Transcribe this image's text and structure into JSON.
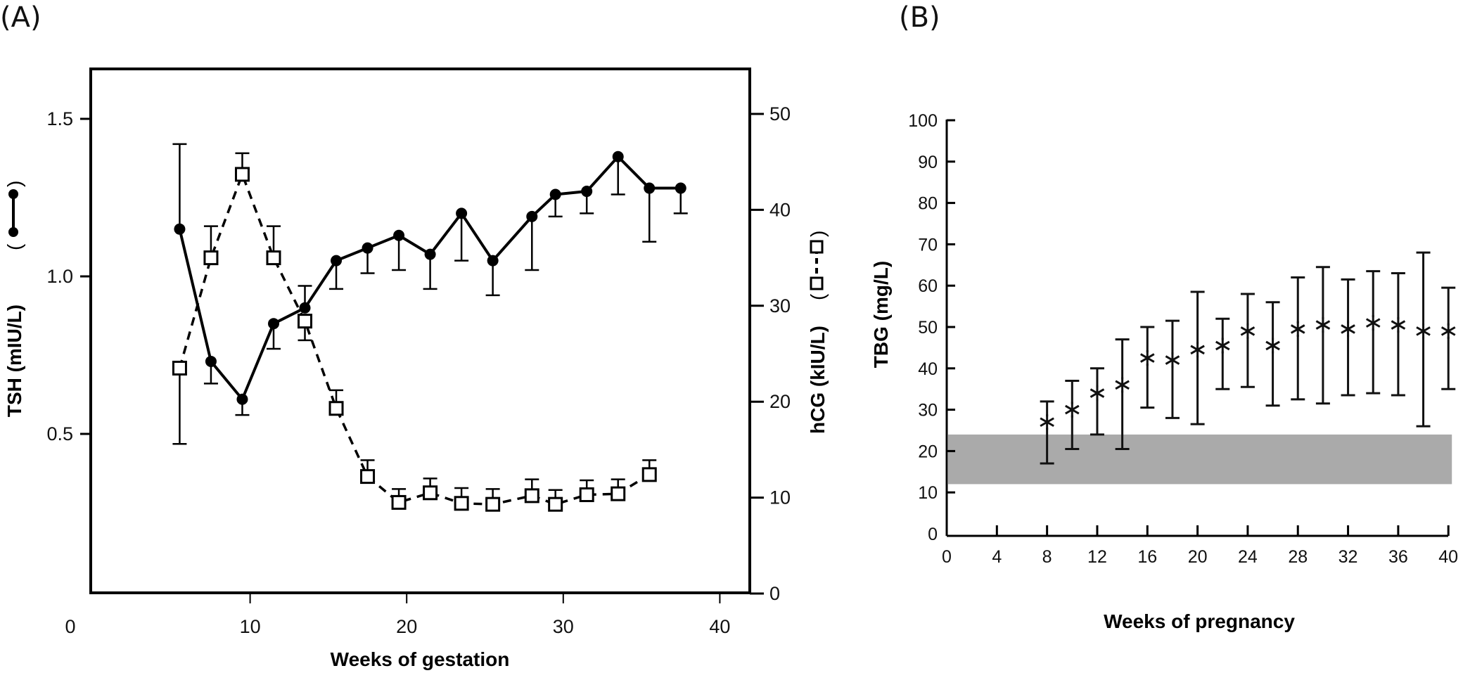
{
  "panels": {
    "a_label": "(A)",
    "b_label": "(B)"
  },
  "chart_data": [
    {
      "id": "A",
      "type": "line",
      "title": "",
      "xlabel": "Weeks of gestation",
      "ylabel_left": "TSH (mIU/L)",
      "ylabel_right": "hCG (kIU/L)",
      "xlim": [
        0,
        42
      ],
      "ylim_left": [
        0,
        1.68
      ],
      "ylim_right": [
        0,
        56
      ],
      "x_ticks": [
        0,
        10,
        20,
        30,
        40
      ],
      "x_tick_labels": [
        "0",
        "10",
        "20",
        "30",
        "40"
      ],
      "y_left_ticks": [
        0.5,
        1.0,
        1.5
      ],
      "y_left_tick_labels": [
        "0.5",
        "1.0",
        "1.5"
      ],
      "y_right_ticks": [
        0,
        10,
        20,
        30,
        40,
        50
      ],
      "y_right_tick_labels": [
        "0",
        "10",
        "20",
        "30",
        "40",
        "50"
      ],
      "grid": false,
      "legend": "inline-axis-labels",
      "series": [
        {
          "name": "TSH",
          "axis": "left",
          "marker": "filled-circle",
          "line": "solid",
          "x": [
            5.5,
            7.5,
            9.5,
            11.5,
            13.5,
            15.5,
            17.5,
            19.5,
            21.5,
            23.5,
            25.5,
            28,
            29.5,
            31.5,
            33.5,
            35.5,
            37.5
          ],
          "values": [
            1.15,
            0.73,
            0.61,
            0.85,
            0.9,
            1.05,
            1.09,
            1.13,
            1.07,
            1.2,
            1.05,
            1.19,
            1.26,
            1.27,
            1.38,
            1.28,
            1.28
          ],
          "error_ends": [
            1.42,
            0.66,
            0.56,
            0.77,
            0.97,
            0.96,
            1.01,
            1.02,
            0.96,
            1.05,
            0.94,
            1.02,
            1.19,
            1.2,
            1.26,
            1.11,
            1.2
          ]
        },
        {
          "name": "hCG",
          "axis": "right",
          "marker": "open-square",
          "line": "dashed",
          "x": [
            5.5,
            7.5,
            9.5,
            11.5,
            13.5,
            15.5,
            17.5,
            19.5,
            21.5,
            23.5,
            25.5,
            28,
            29.5,
            31.5,
            33.5,
            35.5
          ],
          "values": [
            23.5,
            35.0,
            43.7,
            35.0,
            28.4,
            19.3,
            12.2,
            9.5,
            10.5,
            9.4,
            9.3,
            10.2,
            9.3,
            10.3,
            10.4,
            12.4
          ],
          "error_ends": [
            15.6,
            38.3,
            45.9,
            38.3,
            26.4,
            21.2,
            13.9,
            10.9,
            12.0,
            11.0,
            10.9,
            11.9,
            10.8,
            11.8,
            11.9,
            13.9
          ]
        }
      ]
    },
    {
      "id": "B",
      "type": "scatter",
      "title": "",
      "xlabel": "Weeks of pregnancy",
      "ylabel": "TBG (mg/L)",
      "xlim": [
        0,
        40
      ],
      "ylim": [
        0,
        100
      ],
      "x_ticks": [
        0,
        4,
        8,
        12,
        16,
        20,
        24,
        28,
        32,
        36,
        40
      ],
      "x_tick_labels": [
        "0",
        "4",
        "8",
        "12",
        "16",
        "20",
        "24",
        "28",
        "32",
        "36",
        "40"
      ],
      "y_ticks": [
        0,
        10,
        20,
        30,
        40,
        50,
        60,
        70,
        80,
        90,
        100
      ],
      "y_tick_labels": [
        "0",
        "10",
        "20",
        "30",
        "40",
        "50",
        "60",
        "70",
        "80",
        "90",
        "100"
      ],
      "grid": false,
      "reference_band": {
        "low": 12,
        "high": 24,
        "color": "#aaaaaa"
      },
      "series": [
        {
          "name": "TBG",
          "marker": "asterisk",
          "x": [
            8,
            10,
            12,
            14,
            16,
            18,
            20,
            22,
            24,
            26,
            28,
            30,
            32,
            34,
            36,
            38,
            40
          ],
          "values": [
            27,
            30,
            34,
            36,
            42.5,
            42,
            44.5,
            45.5,
            49,
            45.5,
            49.5,
            50.5,
            49.5,
            51,
            50.5,
            49,
            49
          ],
          "lower": [
            17,
            20.5,
            24,
            20.5,
            30.5,
            28,
            26.5,
            35,
            35.5,
            31,
            32.5,
            31.5,
            33.5,
            34,
            33.5,
            26,
            35
          ],
          "upper": [
            32,
            37,
            40,
            47,
            50,
            51.5,
            58.5,
            52,
            58,
            56,
            62,
            64.5,
            61.5,
            63.5,
            63,
            68,
            59.5
          ]
        }
      ]
    }
  ]
}
